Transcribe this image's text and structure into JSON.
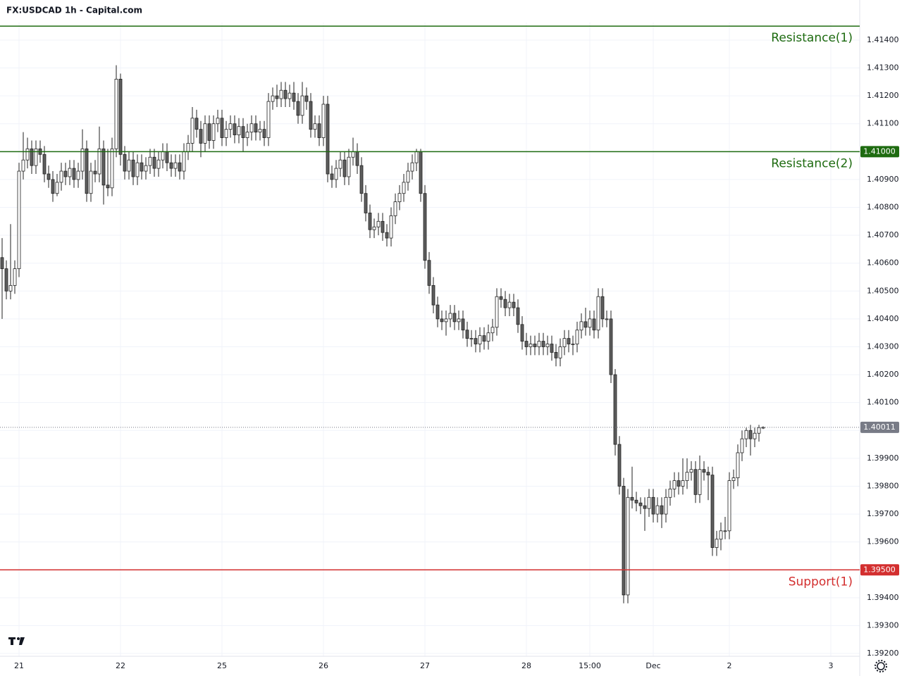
{
  "chart_data": {
    "type": "candlestick",
    "title": "FX:USDCAD 1h - Capital.com",
    "x": [
      0,
      1,
      2,
      3,
      4,
      5,
      6,
      7,
      8,
      9,
      10,
      11,
      12,
      13,
      14,
      15,
      16,
      17,
      18,
      19,
      20,
      21,
      22,
      23,
      24,
      25,
      26,
      27,
      28,
      29,
      30,
      31,
      32,
      33,
      34,
      35,
      36,
      37,
      38,
      39,
      40,
      41,
      42,
      43,
      44,
      45,
      46,
      47,
      48,
      49,
      50,
      51,
      52,
      53,
      54,
      55,
      56,
      57,
      58,
      59,
      60,
      61,
      62,
      63,
      64,
      65,
      66,
      67,
      68,
      69,
      70,
      71,
      72,
      73,
      74,
      75,
      76,
      77,
      78,
      79,
      80,
      81,
      82,
      83,
      84,
      85,
      86,
      87,
      88,
      89,
      90,
      91,
      92,
      93,
      94,
      95,
      96,
      97,
      98,
      99,
      100,
      101,
      102,
      103,
      104,
      105,
      106,
      107,
      108,
      109,
      110,
      111,
      112,
      113,
      114,
      115,
      116,
      117,
      118,
      119,
      120,
      121,
      122,
      123,
      124,
      125,
      126,
      127,
      128,
      129,
      130,
      131,
      132,
      133,
      134,
      135,
      136,
      137,
      138,
      139,
      140,
      141,
      142,
      143,
      144,
      145,
      146,
      147,
      148,
      149,
      150,
      151,
      152,
      153,
      154,
      155,
      156,
      157,
      158,
      159,
      160,
      161,
      162,
      163,
      164,
      165,
      166,
      167,
      168,
      169,
      170,
      171,
      172,
      173,
      174,
      175,
      176,
      177,
      178,
      179,
      180
    ],
    "open": [
      1.4062,
      1.4058,
      1.405,
      1.4052,
      1.4058,
      1.4093,
      1.4097,
      1.4101,
      1.4095,
      1.4101,
      1.4099,
      1.4092,
      1.409,
      1.4085,
      1.4089,
      1.4093,
      1.4091,
      1.4094,
      1.409,
      1.4093,
      1.4101,
      1.4085,
      1.4093,
      1.4092,
      1.4101,
      1.4088,
      1.4087,
      1.4101,
      1.4126,
      1.4099,
      1.4093,
      1.4097,
      1.4091,
      1.4096,
      1.4093,
      1.4095,
      1.4098,
      1.4094,
      1.4097,
      1.41,
      1.4096,
      1.4094,
      1.4096,
      1.4093,
      1.41,
      1.4103,
      1.4112,
      1.4108,
      1.4103,
      1.411,
      1.4104,
      1.411,
      1.4112,
      1.4105,
      1.4108,
      1.411,
      1.4106,
      1.4109,
      1.4105,
      1.4107,
      1.411,
      1.4107,
      1.4108,
      1.4105,
      1.4118,
      1.412,
      1.4119,
      1.4122,
      1.4119,
      1.4121,
      1.4118,
      1.4113,
      1.412,
      1.4118,
      1.4108,
      1.411,
      1.4105,
      1.4117,
      1.4092,
      1.409,
      1.4094,
      1.4097,
      1.4091,
      1.4098,
      1.41,
      1.4095,
      1.4085,
      1.4078,
      1.4072,
      1.4073,
      1.4075,
      1.4071,
      1.4069,
      1.4077,
      1.4082,
      1.4085,
      1.4089,
      1.4093,
      1.4096,
      1.41,
      1.4085,
      1.4061,
      1.4052,
      1.4045,
      1.404,
      1.4039,
      1.404,
      1.4042,
      1.4039,
      1.404,
      1.4036,
      1.4033,
      1.4033,
      1.4031,
      1.4034,
      1.4032,
      1.4035,
      1.4037,
      1.4048,
      1.4047,
      1.4044,
      1.4046,
      1.4044,
      1.4038,
      1.4032,
      1.403,
      1.4031,
      1.403,
      1.4032,
      1.403,
      1.4031,
      1.4028,
      1.4026,
      1.403,
      1.4033,
      1.4031,
      1.4031,
      1.4036,
      1.4039,
      1.4037,
      1.404,
      1.4036,
      1.4048,
      1.404,
      1.404,
      1.402,
      1.3995,
      1.398,
      1.3941,
      1.3976,
      1.3975,
      1.3974,
      1.3973,
      1.3972,
      1.3976,
      1.397,
      1.3973,
      1.397,
      1.3976,
      1.3979,
      1.3982,
      1.398,
      1.3982,
      1.3985,
      1.3986,
      1.3977,
      1.3986,
      1.3985,
      1.3984,
      1.3958,
      1.3961,
      1.3964,
      1.3964,
      1.3982,
      1.3983,
      1.3992,
      1.3997,
      1.4,
      1.3997,
      1.3999,
      1.4001
    ],
    "high": [
      1.4069,
      1.4061,
      1.4074,
      1.4061,
      1.4096,
      1.4107,
      1.4105,
      1.4104,
      1.4104,
      1.4104,
      1.4102,
      1.4095,
      1.4093,
      1.4092,
      1.4096,
      1.4096,
      1.4097,
      1.4097,
      1.4096,
      1.4108,
      1.4104,
      1.4096,
      1.4097,
      1.4109,
      1.4104,
      1.4101,
      1.4105,
      1.4131,
      1.4128,
      1.4102,
      1.41,
      1.41,
      1.4099,
      1.4099,
      1.4098,
      1.4101,
      1.4101,
      1.41,
      1.4103,
      1.4103,
      1.4099,
      1.4099,
      1.4099,
      1.4103,
      1.4106,
      1.4116,
      1.4115,
      1.4111,
      1.4113,
      1.4113,
      1.4113,
      1.4115,
      1.4115,
      1.4111,
      1.4113,
      1.4113,
      1.4112,
      1.4112,
      1.411,
      1.4113,
      1.4113,
      1.4111,
      1.4111,
      1.4121,
      1.4123,
      1.4124,
      1.4125,
      1.4125,
      1.4124,
      1.4125,
      1.4121,
      1.4125,
      1.4123,
      1.4121,
      1.4113,
      1.4113,
      1.412,
      1.412,
      1.4095,
      1.4097,
      1.41,
      1.41,
      1.4101,
      1.4105,
      1.4103,
      1.4098,
      1.4088,
      1.4081,
      1.4076,
      1.4078,
      1.4078,
      1.4074,
      1.408,
      1.4085,
      1.4088,
      1.4092,
      1.4096,
      1.4099,
      1.4101,
      1.4101,
      1.4088,
      1.4064,
      1.4055,
      1.4048,
      1.4043,
      1.4043,
      1.4045,
      1.4045,
      1.4043,
      1.4043,
      1.4039,
      1.4036,
      1.4036,
      1.4037,
      1.4037,
      1.4038,
      1.404,
      1.4051,
      1.4051,
      1.405,
      1.4049,
      1.4049,
      1.4047,
      1.4041,
      1.4035,
      1.4034,
      1.4034,
      1.4035,
      1.4035,
      1.4034,
      1.4034,
      1.4031,
      1.4033,
      1.4036,
      1.4036,
      1.4034,
      1.4039,
      1.4042,
      1.4044,
      1.4043,
      1.4043,
      1.4051,
      1.4051,
      1.4043,
      1.4043,
      1.4022,
      1.3998,
      1.3983,
      1.3979,
      1.3987,
      1.3978,
      1.3976,
      1.3976,
      1.3979,
      1.3979,
      1.3976,
      1.3976,
      1.3979,
      1.3982,
      1.3985,
      1.3985,
      1.399,
      1.399,
      1.3989,
      1.3989,
      1.3991,
      1.3989,
      1.3987,
      1.3987,
      1.3964,
      1.3967,
      1.3969,
      1.3985,
      1.3986,
      1.3995,
      1.4,
      1.4001,
      1.4002,
      1.4001,
      1.4002,
      1.40015
    ],
    "low": [
      1.404,
      1.4047,
      1.4047,
      1.4049,
      1.4055,
      1.409,
      1.4094,
      1.4092,
      1.4092,
      1.4096,
      1.4089,
      1.4087,
      1.4082,
      1.4084,
      1.4086,
      1.4088,
      1.4088,
      1.4087,
      1.4087,
      1.409,
      1.4082,
      1.4082,
      1.4089,
      1.4089,
      1.4081,
      1.4084,
      1.4084,
      1.4098,
      1.4095,
      1.409,
      1.409,
      1.4088,
      1.4088,
      1.409,
      1.409,
      1.4092,
      1.4091,
      1.4091,
      1.4094,
      1.4093,
      1.4091,
      1.4091,
      1.409,
      1.409,
      1.4097,
      1.41,
      1.4105,
      1.4098,
      1.41,
      1.4101,
      1.4101,
      1.4107,
      1.4102,
      1.4102,
      1.4105,
      1.4103,
      1.4103,
      1.41,
      1.4102,
      1.4104,
      1.4104,
      1.4104,
      1.4102,
      1.4102,
      1.4115,
      1.4116,
      1.4116,
      1.4116,
      1.4116,
      1.4115,
      1.411,
      1.411,
      1.4115,
      1.4105,
      1.4105,
      1.4102,
      1.4102,
      1.4089,
      1.4087,
      1.4087,
      1.4091,
      1.4088,
      1.4088,
      1.4095,
      1.4092,
      1.4082,
      1.4075,
      1.4069,
      1.4069,
      1.407,
      1.4068,
      1.4066,
      1.4066,
      1.4074,
      1.4079,
      1.4082,
      1.4086,
      1.409,
      1.4093,
      1.4082,
      1.4058,
      1.4049,
      1.4042,
      1.4037,
      1.4036,
      1.4034,
      1.4037,
      1.4036,
      1.4036,
      1.4033,
      1.403,
      1.403,
      1.4028,
      1.4028,
      1.4029,
      1.4029,
      1.4032,
      1.4034,
      1.4044,
      1.4041,
      1.4041,
      1.4041,
      1.4035,
      1.4029,
      1.4027,
      1.4027,
      1.4027,
      1.4027,
      1.4027,
      1.4027,
      1.4025,
      1.4023,
      1.4023,
      1.4027,
      1.4028,
      1.4027,
      1.4028,
      1.4033,
      1.4034,
      1.4034,
      1.4033,
      1.4033,
      1.4037,
      1.4037,
      1.4017,
      1.3991,
      1.3977,
      1.3938,
      1.3938,
      1.3972,
      1.3971,
      1.397,
      1.3964,
      1.3969,
      1.3967,
      1.3967,
      1.3965,
      1.3967,
      1.3973,
      1.3976,
      1.3977,
      1.3977,
      1.3979,
      1.3982,
      1.3974,
      1.3974,
      1.3982,
      1.3975,
      1.3955,
      1.3955,
      1.3957,
      1.3961,
      1.3961,
      1.3979,
      1.398,
      1.3989,
      1.3994,
      1.3991,
      1.3994,
      1.3996,
      1.40005
    ],
    "close": [
      1.4058,
      1.405,
      1.4052,
      1.4058,
      1.4093,
      1.4097,
      1.4101,
      1.4095,
      1.4101,
      1.4099,
      1.4092,
      1.409,
      1.4085,
      1.4089,
      1.4093,
      1.4091,
      1.4094,
      1.409,
      1.4093,
      1.4101,
      1.4085,
      1.4093,
      1.4092,
      1.4101,
      1.4088,
      1.4087,
      1.4101,
      1.4126,
      1.4099,
      1.4093,
      1.4097,
      1.4091,
      1.4096,
      1.4093,
      1.4095,
      1.4098,
      1.4094,
      1.4097,
      1.41,
      1.4096,
      1.4094,
      1.4096,
      1.4093,
      1.41,
      1.4103,
      1.4112,
      1.4108,
      1.4103,
      1.411,
      1.4104,
      1.411,
      1.4112,
      1.4105,
      1.4108,
      1.411,
      1.4106,
      1.4109,
      1.4105,
      1.4107,
      1.411,
      1.4107,
      1.4108,
      1.4105,
      1.4118,
      1.412,
      1.4119,
      1.4122,
      1.4119,
      1.4121,
      1.4118,
      1.4113,
      1.412,
      1.4118,
      1.4108,
      1.411,
      1.4105,
      1.4117,
      1.4092,
      1.409,
      1.4094,
      1.4097,
      1.4091,
      1.4098,
      1.41,
      1.4095,
      1.4085,
      1.4078,
      1.4072,
      1.4073,
      1.4075,
      1.4071,
      1.4069,
      1.4077,
      1.4082,
      1.4085,
      1.4089,
      1.4093,
      1.4096,
      1.41,
      1.4085,
      1.4061,
      1.4052,
      1.4045,
      1.404,
      1.4039,
      1.404,
      1.4042,
      1.4039,
      1.404,
      1.4036,
      1.4033,
      1.4033,
      1.4031,
      1.4034,
      1.4032,
      1.4035,
      1.4037,
      1.4048,
      1.4047,
      1.4044,
      1.4046,
      1.4044,
      1.4038,
      1.4032,
      1.403,
      1.4031,
      1.403,
      1.4032,
      1.403,
      1.4031,
      1.4028,
      1.4026,
      1.403,
      1.4033,
      1.4031,
      1.4031,
      1.4036,
      1.4039,
      1.4037,
      1.404,
      1.4036,
      1.4048,
      1.404,
      1.404,
      1.402,
      1.3995,
      1.398,
      1.3941,
      1.3976,
      1.3975,
      1.3974,
      1.3973,
      1.3972,
      1.3976,
      1.397,
      1.3973,
      1.397,
      1.3976,
      1.3979,
      1.3982,
      1.398,
      1.3982,
      1.3985,
      1.3986,
      1.3977,
      1.3986,
      1.3985,
      1.3984,
      1.3958,
      1.3961,
      1.3964,
      1.3964,
      1.3982,
      1.3983,
      1.3992,
      1.3997,
      1.4,
      1.3997,
      1.3999,
      1.4001,
      1.40011
    ],
    "up_color": "#ffffff",
    "down_color": "#5d5d5d",
    "edge_color": "#222222",
    "xlim": [
      -0.5,
      202.5
    ],
    "ylim": [
      1.3919,
      1.41463
    ],
    "xticks": [
      {
        "value": 4,
        "label": "21"
      },
      {
        "value": 28,
        "label": "22"
      },
      {
        "value": 52,
        "label": "25"
      },
      {
        "value": 76,
        "label": "26"
      },
      {
        "value": 100,
        "label": "27"
      },
      {
        "value": 124,
        "label": "28"
      },
      {
        "value": 139,
        "label": "15:00"
      },
      {
        "value": 154,
        "label": "Dec"
      },
      {
        "value": 172,
        "label": "2"
      },
      {
        "value": 196,
        "label": "3"
      }
    ],
    "yticks": [
      {
        "value": 1.392,
        "label": "1.39200"
      },
      {
        "value": 1.393,
        "label": "1.39300"
      },
      {
        "value": 1.394,
        "label": "1.39400"
      },
      {
        "value": 1.395,
        "label": "1.39500"
      },
      {
        "value": 1.396,
        "label": "1.39600"
      },
      {
        "value": 1.397,
        "label": "1.39700"
      },
      {
        "value": 1.398,
        "label": "1.39800"
      },
      {
        "value": 1.399,
        "label": "1.39900"
      },
      {
        "value": 1.4,
        "label": "1.40000"
      },
      {
        "value": 1.401,
        "label": "1.40100"
      },
      {
        "value": 1.402,
        "label": "1.40200"
      },
      {
        "value": 1.403,
        "label": "1.40300"
      },
      {
        "value": 1.404,
        "label": "1.40400"
      },
      {
        "value": 1.405,
        "label": "1.40500"
      },
      {
        "value": 1.406,
        "label": "1.40600"
      },
      {
        "value": 1.407,
        "label": "1.40700"
      },
      {
        "value": 1.408,
        "label": "1.40800"
      },
      {
        "value": 1.409,
        "label": "1.40900"
      },
      {
        "value": 1.41,
        "label": "1.41000"
      },
      {
        "value": 1.411,
        "label": "1.41100"
      },
      {
        "value": 1.412,
        "label": "1.41200"
      },
      {
        "value": 1.413,
        "label": "1.41300"
      },
      {
        "value": 1.414,
        "label": "1.41400"
      }
    ],
    "grid": true,
    "levels": [
      {
        "name": "Resistance(1)",
        "value": 1.4145,
        "color": "#1e6b10"
      },
      {
        "name": "Resistance(2)",
        "value": 1.41,
        "label": "1.41000",
        "color": "#1e6b10"
      },
      {
        "name": "Support(1)",
        "value": 1.395,
        "label": "1.39500",
        "color": "#d32f2f"
      }
    ],
    "last": {
      "value": 1.40011,
      "label": "1.40011",
      "color": "#787b86"
    }
  }
}
